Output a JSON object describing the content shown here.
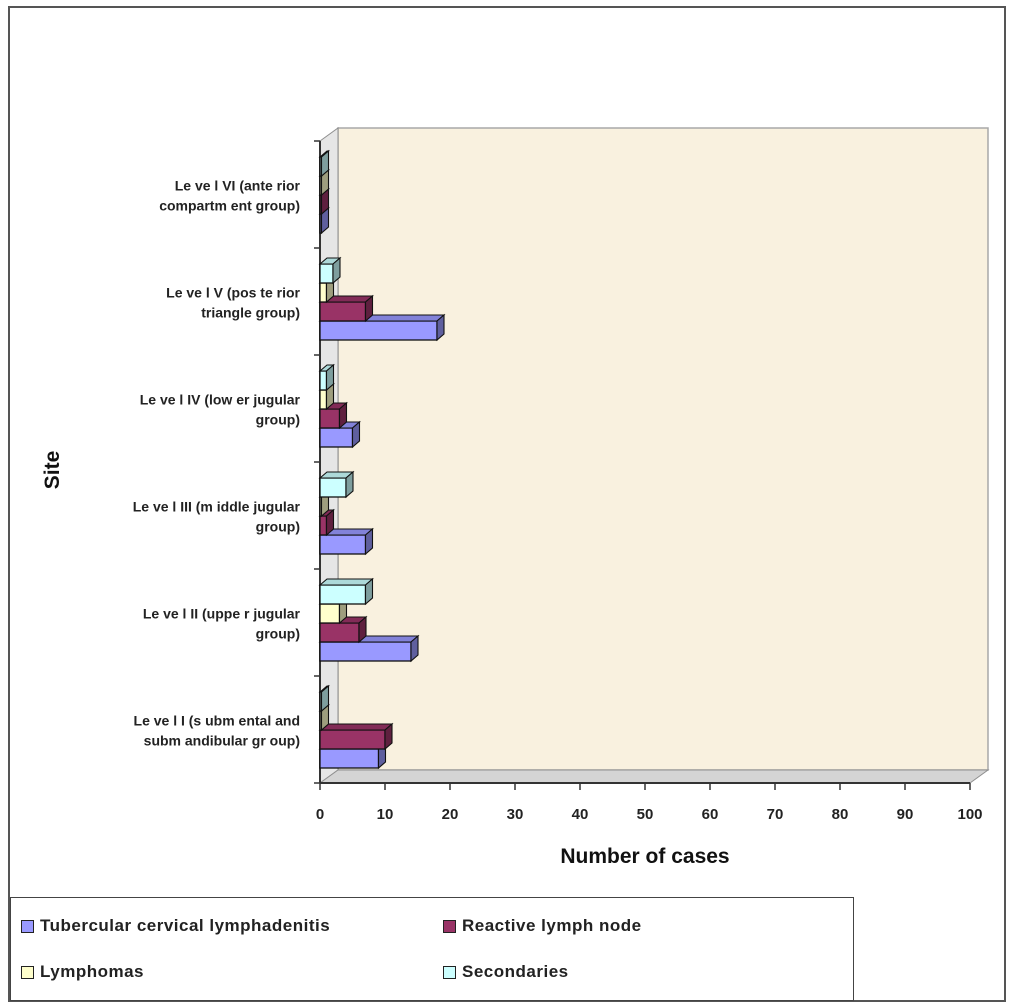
{
  "chart_data": {
    "type": "bar",
    "orientation": "horizontal",
    "style": "3d-clustered",
    "categories": [
      "Le ve l I (s ubm ental and subm andibular gr oup)",
      "Le ve l II (uppe r jugular group)",
      "Le ve l III (m iddle jugular group)",
      "Le ve l IV (low er jugular group)",
      "Le ve l V (pos te rior triangle group)",
      "Le ve l VI (ante rior compartm ent group)"
    ],
    "category_lines": [
      [
        "Le ve l I (s ubm ental and",
        "subm andibular gr oup)"
      ],
      [
        "Le ve l II (uppe r jugular",
        "group)"
      ],
      [
        "Le ve l III (m iddle jugular",
        "group)"
      ],
      [
        "Le ve l IV (low er jugular",
        "group)"
      ],
      [
        "Le ve l V (pos te rior",
        "triangle group)"
      ],
      [
        "Le ve l VI (ante rior",
        "compartm ent group)"
      ]
    ],
    "series": [
      {
        "name": "Tubercular cervical lymphadenitis",
        "color": "#9999ff",
        "values": [
          9,
          14,
          7,
          5,
          18,
          0
        ]
      },
      {
        "name": "Reactive lymph node",
        "color": "#993366",
        "values": [
          10,
          6,
          1,
          3,
          7,
          0
        ]
      },
      {
        "name": "Lymphomas",
        "color": "#ffffcc",
        "values": [
          0,
          3,
          0,
          1,
          1,
          0
        ]
      },
      {
        "name": "Secondaries",
        "color": "#ccffff",
        "values": [
          0,
          7,
          4,
          1,
          2,
          0
        ]
      }
    ],
    "xlabel": "Number of cases",
    "ylabel": "Site",
    "xlim": [
      0,
      100
    ],
    "xticks": [
      0,
      10,
      20,
      30,
      40,
      50,
      60,
      70,
      80,
      90,
      100
    ],
    "plot_background": "#f9f1df",
    "legend_position": "bottom-left",
    "grid": false
  }
}
